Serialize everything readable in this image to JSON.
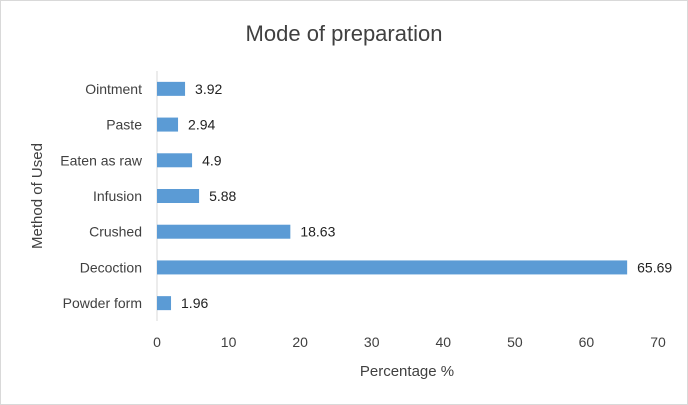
{
  "chart_data": {
    "type": "bar",
    "orientation": "horizontal",
    "title": "Mode of preparation",
    "xlabel": "Percentage %",
    "ylabel": "Method of Used",
    "categories": [
      "Ointment",
      "Paste",
      "Eaten as raw",
      "Infusion",
      "Crushed",
      "Decoction",
      "Powder form"
    ],
    "values": [
      3.92,
      2.94,
      4.9,
      5.88,
      18.63,
      65.69,
      1.96
    ],
    "value_labels": [
      "3.92",
      "2.94",
      "4.9",
      "5.88",
      "18.63",
      "65.69",
      "1.96"
    ],
    "xlim": [
      0,
      70
    ],
    "x_ticks": [
      0,
      10,
      20,
      30,
      40,
      50,
      60,
      70
    ],
    "grid": false,
    "legend": false,
    "bar_color": "#5b9bd5"
  }
}
